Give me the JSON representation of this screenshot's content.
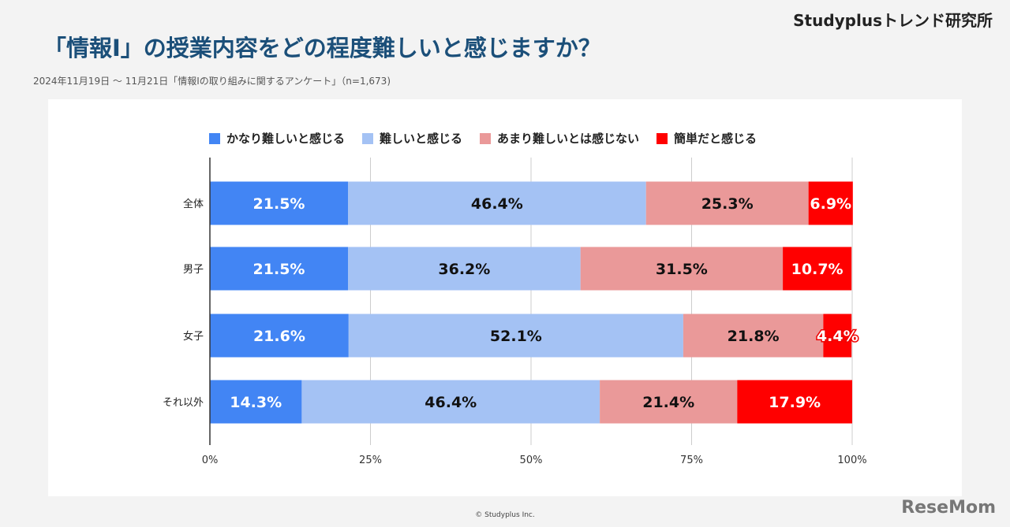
{
  "brand": "Studyplusトレンド研究所",
  "title": "「情報Ⅰ」の授業内容をどの程度難しいと感じますか？",
  "subtitle": "2024年11月19日 ～ 11月21日「情報Ⅰの取り組みに関するアンケート」（n=1,673)",
  "copyright": "© Studyplus Inc.",
  "watermark": "ReseMom",
  "chart_data": {
    "type": "bar",
    "orientation": "horizontal-stacked-100",
    "categories": [
      "全体",
      "男子",
      "女子",
      "それ以外"
    ],
    "series": [
      {
        "name": "かなり難しいと感じる",
        "color": "#4285f4",
        "values": [
          21.5,
          21.5,
          21.6,
          14.3
        ]
      },
      {
        "name": "難しいと感じる",
        "color": "#a4c2f4",
        "values": [
          46.4,
          36.2,
          52.1,
          46.4
        ]
      },
      {
        "name": "あまり難しいとは感じない",
        "color": "#ea9999",
        "values": [
          25.3,
          31.5,
          21.8,
          21.4
        ]
      },
      {
        "name": "簡単だと感じる",
        "color": "#ff0000",
        "values": [
          6.9,
          10.7,
          4.4,
          17.9
        ]
      }
    ],
    "xticks": [
      "0%",
      "25%",
      "50%",
      "75%",
      "100%"
    ],
    "xlim": [
      0,
      100
    ],
    "grid": true,
    "legend": "top"
  }
}
